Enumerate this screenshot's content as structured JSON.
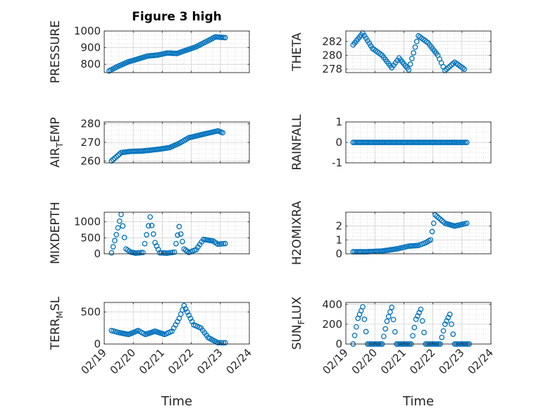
{
  "figure": {
    "title": "Figure 3 high",
    "xlabel": "Time",
    "x_tick_labels": [
      "02/19",
      "02/20",
      "02/21",
      "02/22",
      "02/23",
      "02/24"
    ],
    "marker_color": "#0072BD",
    "grid_color": "#d9d9d9",
    "axis_color": "#262626"
  },
  "chart_data": [
    {
      "id": "pressure",
      "type": "scatter",
      "ylabel": "PRESSURE",
      "ylim": [
        750,
        1000
      ],
      "yticks": [
        800,
        900,
        1000
      ],
      "xlim": [
        "02/19",
        "02/24"
      ],
      "grid": true,
      "x": [
        "2024-02-19 04:00",
        "2024-02-19 12:00",
        "2024-02-19 20:00",
        "2024-02-20 04:00",
        "2024-02-20 12:00",
        "2024-02-20 20:00",
        "2024-02-21 04:00",
        "2024-02-21 12:00",
        "2024-02-21 20:00",
        "2024-02-22 04:00",
        "2024-02-22 12:00",
        "2024-02-22 20:00",
        "2024-02-23 04:00"
      ],
      "y": [
        760,
        790,
        815,
        832,
        850,
        855,
        868,
        865,
        885,
        905,
        935,
        965,
        960
      ]
    },
    {
      "id": "theta",
      "type": "scatter",
      "ylabel": "THETA",
      "ylim": [
        277.5,
        283.5
      ],
      "yticks": [
        278,
        280,
        282
      ],
      "xlim": [
        "02/19",
        "02/24"
      ],
      "grid": true,
      "x": [
        "2024-02-19 06:00",
        "2024-02-19 14:00",
        "2024-02-19 22:00",
        "2024-02-20 06:00",
        "2024-02-20 14:00",
        "2024-02-20 20:00",
        "2024-02-21 04:00",
        "2024-02-21 12:00",
        "2024-02-21 20:00",
        "2024-02-22 04:00",
        "2024-02-22 10:00",
        "2024-02-22 18:00",
        "2024-02-23 02:00"
      ],
      "y": [
        281.5,
        283.2,
        281.0,
        280.0,
        278.2,
        279.6,
        277.9,
        282.8,
        281.8,
        280.0,
        277.8,
        279.0,
        278.0
      ]
    },
    {
      "id": "air_temp",
      "type": "scatter",
      "ylabel": "AIR_TEMP",
      "ylim": [
        259,
        281
      ],
      "yticks": [
        260,
        270,
        280
      ],
      "xlim": [
        "02/19",
        "02/24"
      ],
      "grid": true,
      "x": [
        "2024-02-19 06:00",
        "2024-02-19 14:00",
        "2024-02-19 22:00",
        "2024-02-20 06:00",
        "2024-02-20 14:00",
        "2024-02-20 22:00",
        "2024-02-21 06:00",
        "2024-02-21 14:00",
        "2024-02-21 22:00",
        "2024-02-22 06:00",
        "2024-02-22 14:00",
        "2024-02-22 22:00",
        "2024-02-23 02:00"
      ],
      "y": [
        260,
        264.5,
        265.2,
        265.3,
        265.8,
        266.4,
        267.2,
        269.5,
        272.5,
        273.8,
        275,
        276.2,
        275.2
      ]
    },
    {
      "id": "rainfall",
      "type": "scatter",
      "ylabel": "RAINFALL",
      "ylim": [
        -1,
        1
      ],
      "yticks": [
        -1,
        0,
        1
      ],
      "xlim": [
        "02/19",
        "02/24"
      ],
      "grid": true,
      "x": [
        "2024-02-19 06:00",
        "2024-02-19 18:00",
        "2024-02-20 06:00",
        "2024-02-20 18:00",
        "2024-02-21 06:00",
        "2024-02-21 18:00",
        "2024-02-22 06:00",
        "2024-02-22 18:00",
        "2024-02-23 04:00"
      ],
      "y": [
        0,
        0,
        0,
        0,
        0,
        0,
        0,
        0,
        0
      ]
    },
    {
      "id": "mixdepth",
      "type": "scatter",
      "ylabel": "MIXDEPTH",
      "ylim": [
        0,
        1300
      ],
      "yticks": [
        0,
        500,
        1000
      ],
      "xlim": [
        "02/19",
        "02/24"
      ],
      "grid": true,
      "x": [
        "2024-02-19 06:00",
        "2024-02-19 10:00",
        "2024-02-19 14:00",
        "2024-02-19 18:00",
        "2024-02-19 22:00",
        "2024-02-20 02:00",
        "2024-02-20 08:00",
        "2024-02-20 14:00",
        "2024-02-20 18:00",
        "2024-02-20 22:00",
        "2024-02-21 04:00",
        "2024-02-21 10:00",
        "2024-02-21 14:00",
        "2024-02-21 18:00",
        "2024-02-21 22:00",
        "2024-02-22 04:00",
        "2024-02-22 10:00",
        "2024-02-22 18:00",
        "2024-02-22 22:00",
        "2024-02-23 04:00"
      ],
      "y": [
        30,
        600,
        1230,
        150,
        50,
        20,
        40,
        1150,
        350,
        30,
        20,
        50,
        850,
        150,
        40,
        130,
        450,
        400,
        300,
        320
      ]
    },
    {
      "id": "h2omixra",
      "type": "scatter",
      "ylabel": "H2OMIXRA",
      "ylim": [
        0,
        3
      ],
      "yticks": [
        0,
        1,
        2
      ],
      "xlim": [
        "02/19",
        "02/24"
      ],
      "grid": true,
      "x": [
        "2024-02-19 06:00",
        "2024-02-19 18:00",
        "2024-02-20 06:00",
        "2024-02-20 18:00",
        "2024-02-21 04:00",
        "2024-02-21 12:00",
        "2024-02-21 18:00",
        "2024-02-21 22:00",
        "2024-02-22 02:00",
        "2024-02-22 10:00",
        "2024-02-22 18:00",
        "2024-02-23 04:00"
      ],
      "y": [
        0.15,
        0.15,
        0.2,
        0.35,
        0.55,
        0.6,
        0.8,
        1.0,
        2.8,
        2.2,
        2.0,
        2.2
      ]
    },
    {
      "id": "terr_msl",
      "type": "scatter",
      "ylabel": "TERR_MSL",
      "ylim": [
        0,
        650
      ],
      "yticks": [
        0,
        500
      ],
      "xlim": [
        "02/19",
        "02/24"
      ],
      "grid": true,
      "x": [
        "2024-02-19 06:00",
        "2024-02-19 12:00",
        "2024-02-19 20:00",
        "2024-02-20 04:00",
        "2024-02-20 10:00",
        "2024-02-20 18:00",
        "2024-02-21 02:00",
        "2024-02-21 08:00",
        "2024-02-21 14:00",
        "2024-02-21 18:00",
        "2024-02-22 02:00",
        "2024-02-22 08:00",
        "2024-02-22 14:00",
        "2024-02-22 22:00",
        "2024-02-23 04:00"
      ],
      "y": [
        210,
        180,
        150,
        210,
        150,
        200,
        150,
        200,
        400,
        600,
        300,
        250,
        100,
        20,
        20
      ]
    },
    {
      "id": "sun_flux",
      "type": "scatter",
      "ylabel": "SUN_FLUX",
      "ylim": [
        0,
        420
      ],
      "yticks": [
        0,
        200,
        400
      ],
      "xlim": [
        "02/19",
        "02/24"
      ],
      "grid": true,
      "x": [
        "2024-02-19 06:00",
        "2024-02-19 10:00",
        "2024-02-19 14:00",
        "2024-02-19 18:00",
        "2024-02-20 06:00",
        "2024-02-20 10:00",
        "2024-02-20 14:00",
        "2024-02-20 18:00",
        "2024-02-21 06:00",
        "2024-02-21 10:00",
        "2024-02-21 14:00",
        "2024-02-21 18:00",
        "2024-02-22 06:00",
        "2024-02-22 10:00",
        "2024-02-22 14:00",
        "2024-02-22 18:00",
        "2024-02-23 06:00"
      ],
      "y": [
        0,
        260,
        375,
        0,
        0,
        230,
        370,
        0,
        0,
        250,
        350,
        0,
        0,
        200,
        300,
        0,
        0
      ]
    }
  ]
}
